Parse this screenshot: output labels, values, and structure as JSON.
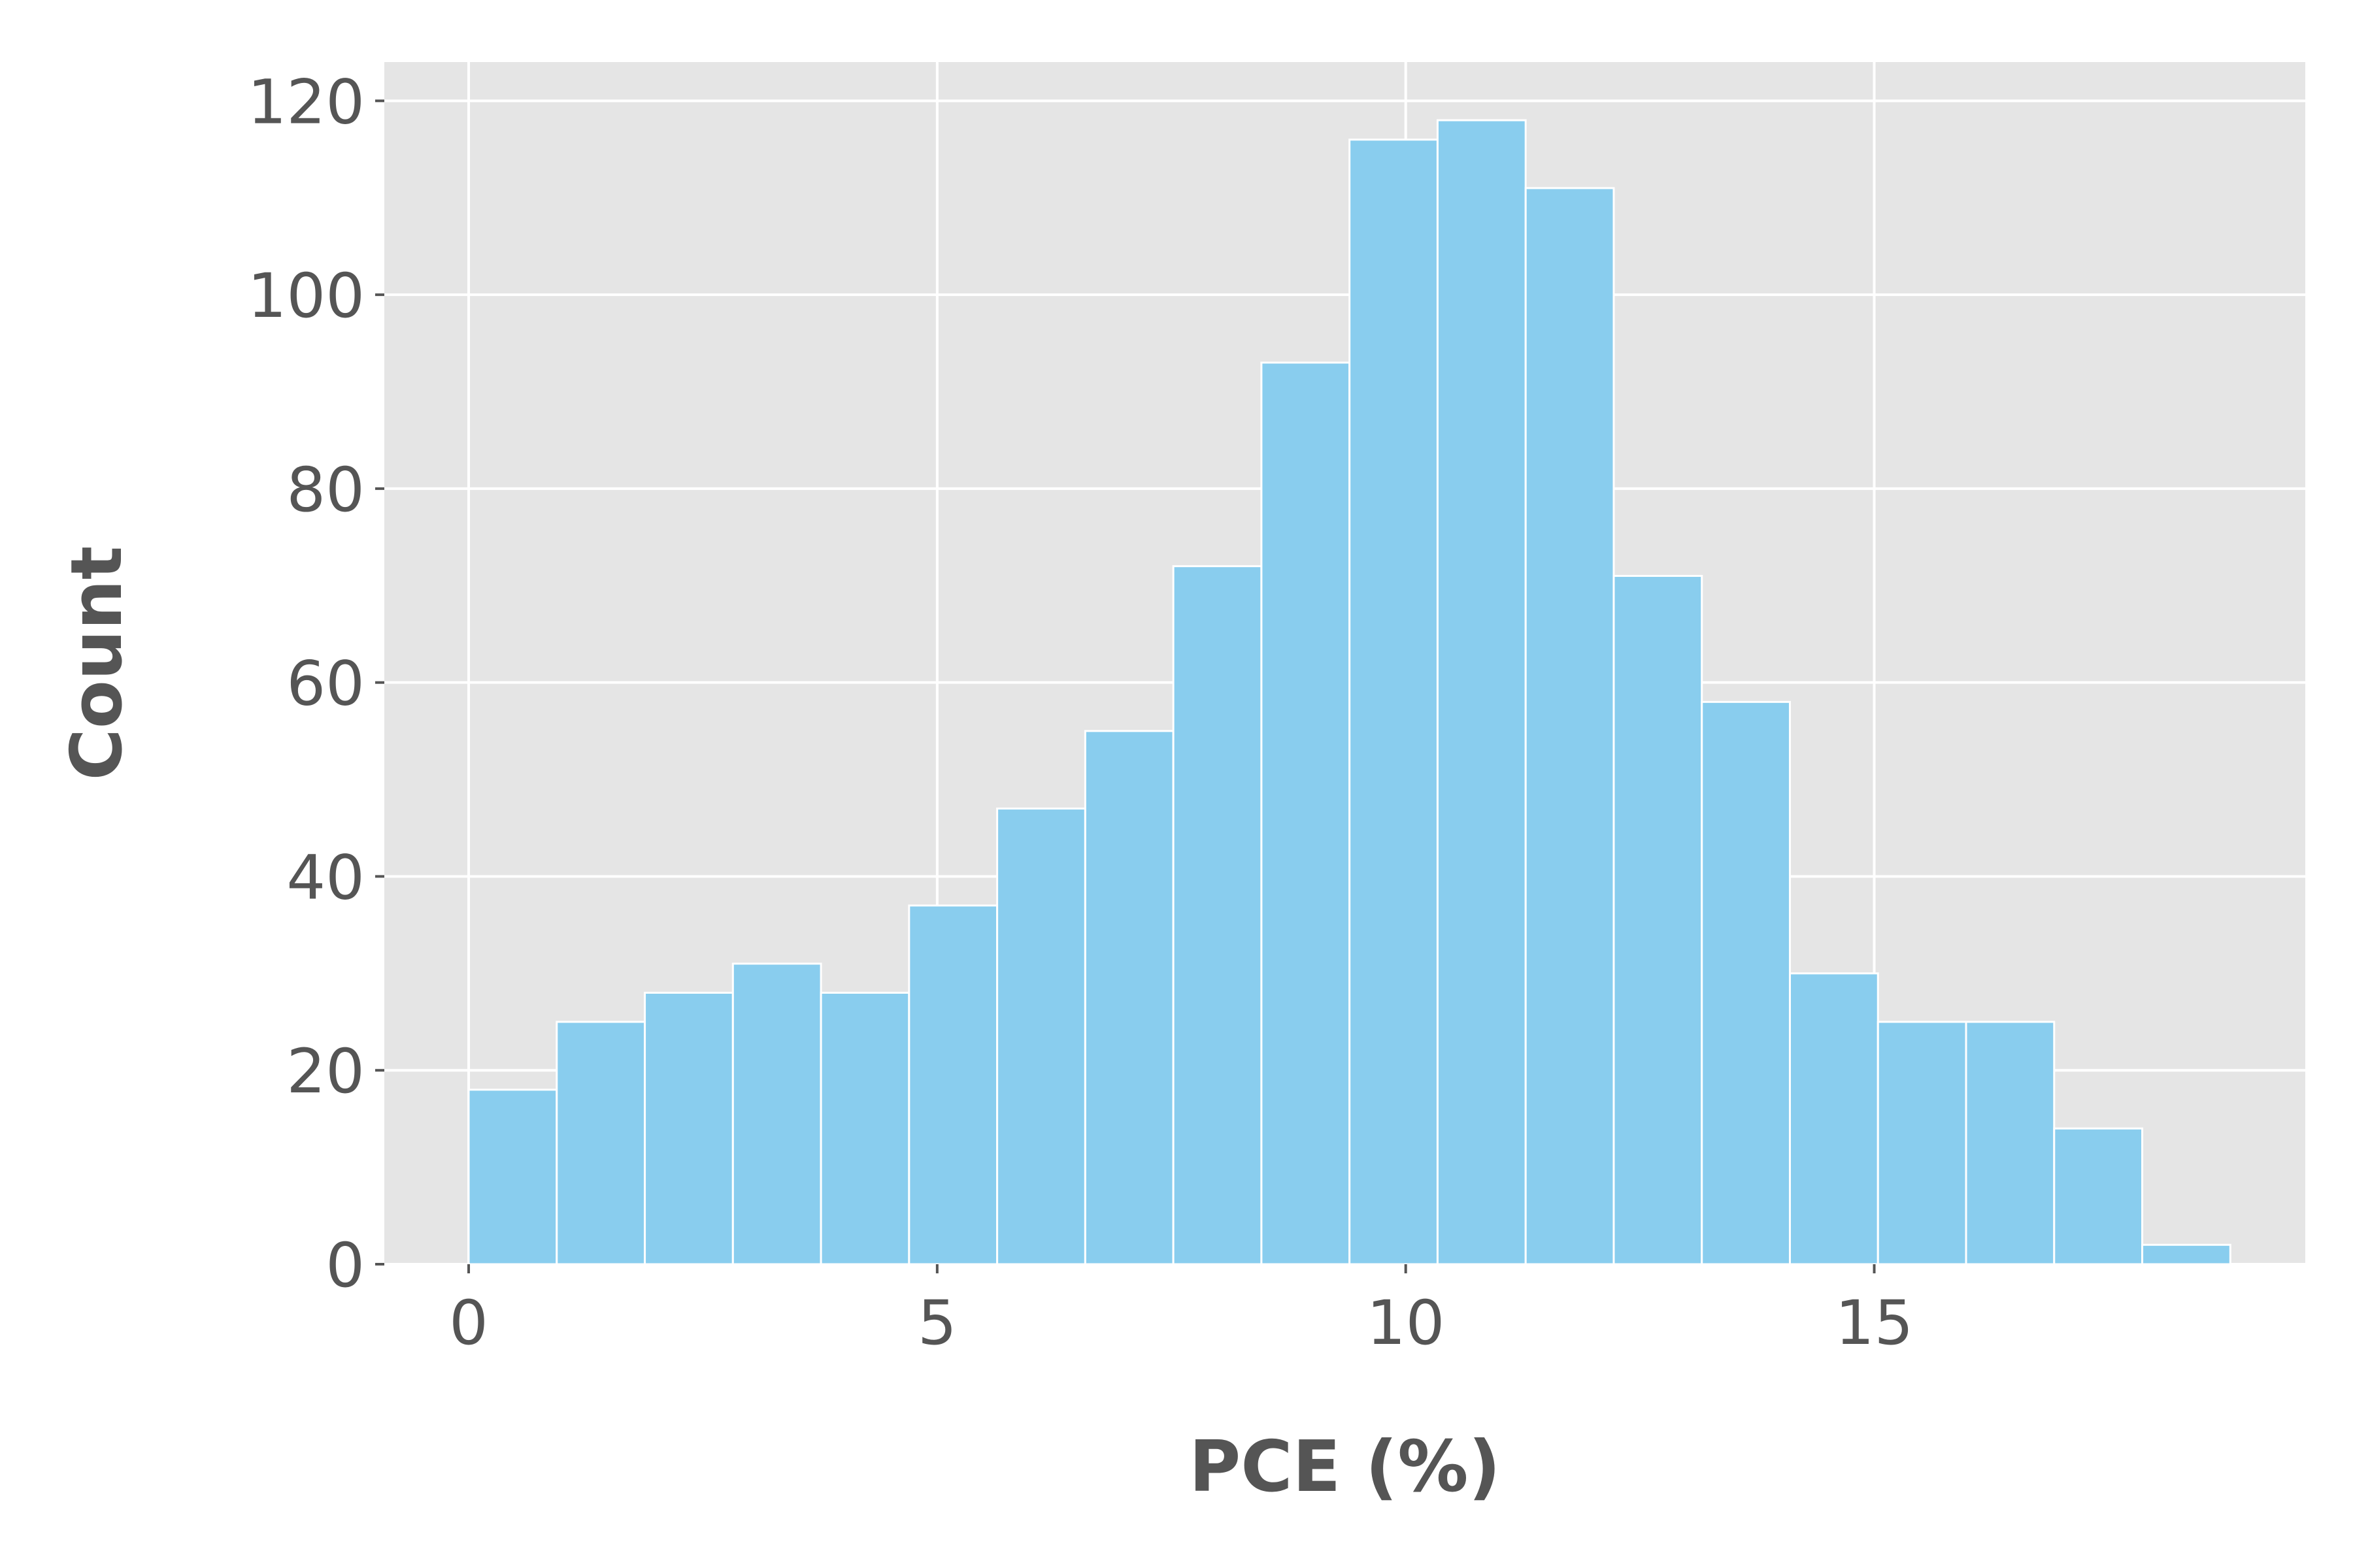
{
  "chart_data": {
    "type": "bar",
    "subtype": "histogram",
    "title": "",
    "xlabel": "PCE (%)",
    "ylabel": "Count",
    "xlim": [
      -0.9,
      19.6
    ],
    "ylim": [
      0,
      124
    ],
    "xticks": [
      0,
      5,
      10,
      15
    ],
    "yticks": [
      0,
      20,
      40,
      60,
      80,
      100,
      120
    ],
    "grid": true,
    "legend": "none",
    "bins": [
      {
        "start": 0.0,
        "end": 0.94,
        "count": 18
      },
      {
        "start": 0.94,
        "end": 1.88,
        "count": 25
      },
      {
        "start": 1.88,
        "end": 2.82,
        "count": 28
      },
      {
        "start": 2.82,
        "end": 3.76,
        "count": 31
      },
      {
        "start": 3.76,
        "end": 4.7,
        "count": 28
      },
      {
        "start": 4.7,
        "end": 5.64,
        "count": 37
      },
      {
        "start": 5.64,
        "end": 6.58,
        "count": 47
      },
      {
        "start": 6.58,
        "end": 7.52,
        "count": 55
      },
      {
        "start": 7.52,
        "end": 8.46,
        "count": 72
      },
      {
        "start": 8.46,
        "end": 9.4,
        "count": 93
      },
      {
        "start": 9.4,
        "end": 10.34,
        "count": 116
      },
      {
        "start": 10.34,
        "end": 11.28,
        "count": 118
      },
      {
        "start": 11.28,
        "end": 12.22,
        "count": 111
      },
      {
        "start": 12.22,
        "end": 13.16,
        "count": 71
      },
      {
        "start": 13.16,
        "end": 14.1,
        "count": 58
      },
      {
        "start": 14.1,
        "end": 15.04,
        "count": 30
      },
      {
        "start": 15.04,
        "end": 15.98,
        "count": 25
      },
      {
        "start": 15.98,
        "end": 16.92,
        "count": 25
      },
      {
        "start": 16.92,
        "end": 17.86,
        "count": 14
      },
      {
        "start": 17.86,
        "end": 18.8,
        "count": 2
      }
    ],
    "colors": {
      "bar": "#89CDEE",
      "bar_edge": "#ffffff",
      "plot_background": "#E5E5E5",
      "grid": "#ffffff",
      "text": "#555555"
    }
  }
}
